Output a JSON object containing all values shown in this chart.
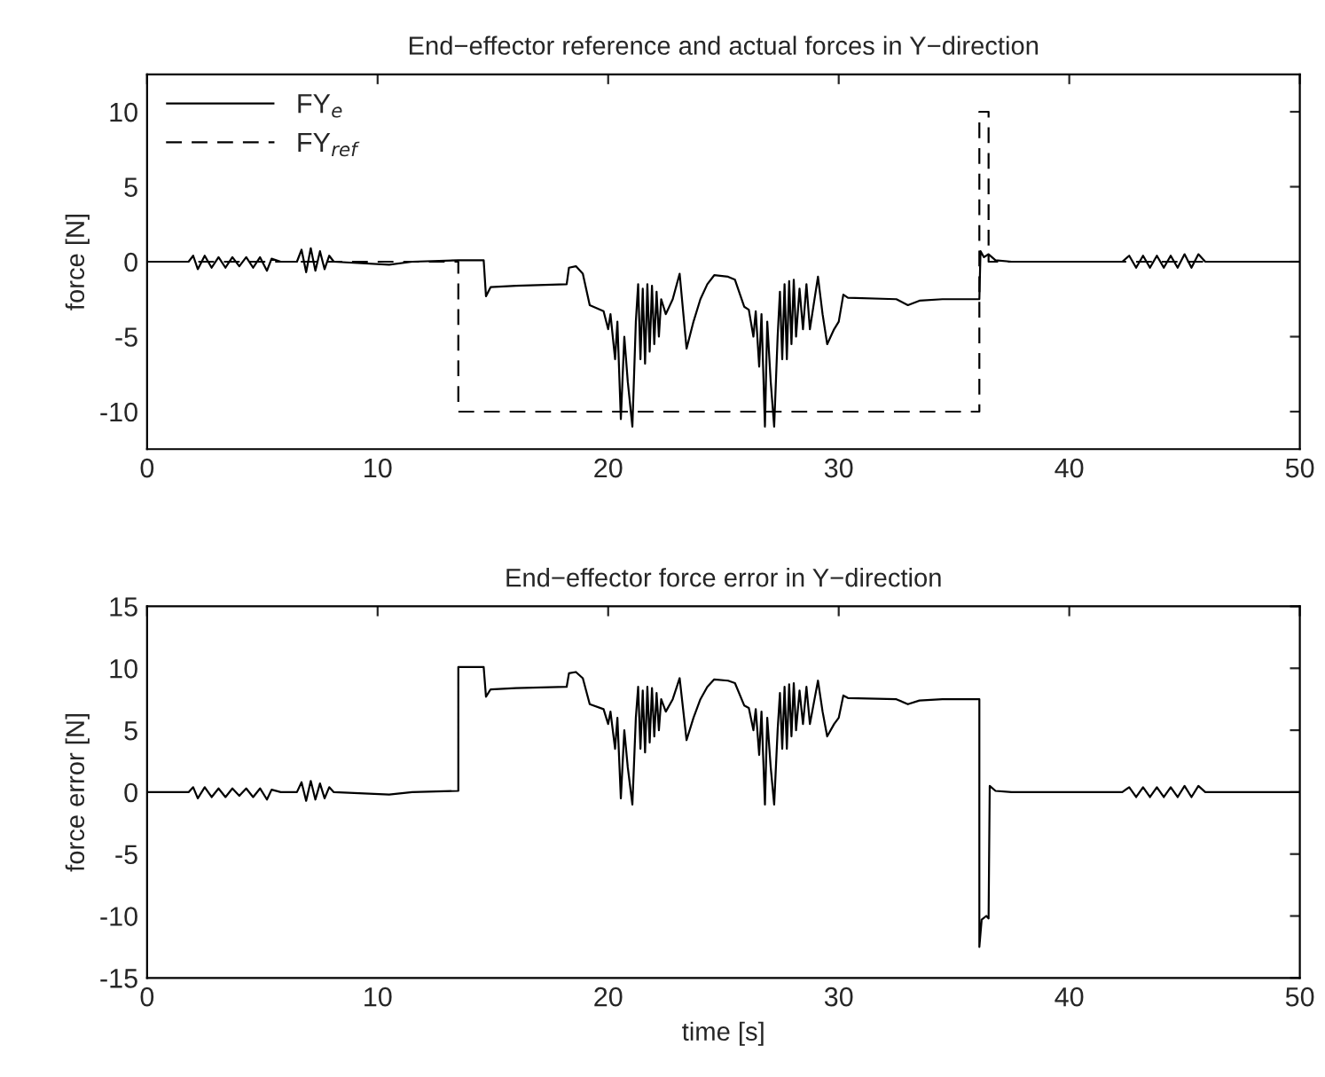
{
  "chart_data": [
    {
      "type": "line",
      "title": "End−effector reference and actual forces in Y−direction",
      "ylabel": "force [N]",
      "xlim": [
        0,
        50
      ],
      "ylim": [
        -12.5,
        12.5
      ],
      "xticks": [
        0,
        10,
        20,
        30,
        40,
        50
      ],
      "yticks": [
        -10,
        -5,
        0,
        5,
        10
      ],
      "legend": "top left",
      "series": [
        {
          "name": "FY$_{e}$",
          "color": "#000000",
          "line_style": "solid",
          "x": [
            0,
            1.8,
            2.0,
            2.2,
            2.5,
            2.8,
            3.1,
            3.4,
            3.7,
            4.0,
            4.3,
            4.6,
            4.9,
            5.2,
            5.4,
            5.8,
            6.5,
            6.7,
            6.9,
            7.1,
            7.3,
            7.5,
            7.7,
            7.9,
            8.1,
            10.5,
            11.5,
            13.5,
            14.6,
            14.7,
            14.9,
            16,
            18.2,
            18.3,
            18.6,
            18.9,
            19.2,
            19.8,
            20.0,
            20.1,
            20.3,
            20.4,
            20.55,
            20.7,
            20.85,
            21.05,
            21.2,
            21.3,
            21.4,
            21.5,
            21.6,
            21.7,
            21.8,
            21.9,
            22.0,
            22.1,
            22.2,
            22.3,
            22.5,
            22.8,
            23.1,
            23.4,
            23.7,
            24.0,
            24.3,
            24.6,
            25.2,
            25.5,
            25.9,
            26.1,
            26.3,
            26.4,
            26.55,
            26.65,
            26.8,
            26.9,
            27.05,
            27.2,
            27.35,
            27.45,
            27.55,
            27.65,
            27.75,
            27.85,
            27.95,
            28.05,
            28.15,
            28.3,
            28.45,
            28.6,
            28.75,
            28.9,
            29.1,
            29.3,
            29.5,
            29.8,
            30.0,
            30.2,
            30.4,
            32.5,
            33.0,
            33.5,
            34.5,
            36.1,
            36.15,
            36.3,
            36.5,
            36.8,
            37.5,
            42.3,
            42.6,
            42.9,
            43.2,
            43.5,
            43.8,
            44.1,
            44.4,
            44.7,
            45.0,
            45.3,
            45.6,
            45.9,
            50
          ],
          "values": [
            0,
            0,
            0.4,
            -0.5,
            0.4,
            -0.4,
            0.3,
            -0.4,
            0.3,
            -0.3,
            0.3,
            -0.4,
            0.3,
            -0.6,
            0.2,
            0,
            0,
            0.8,
            -0.7,
            0.9,
            -0.6,
            0.7,
            -0.5,
            0.4,
            0,
            -0.2,
            0,
            0.1,
            0.1,
            -2.3,
            -1.7,
            -1.6,
            -1.5,
            -0.4,
            -0.3,
            -0.8,
            -2.9,
            -3.3,
            -4.5,
            -3.5,
            -6.5,
            -4,
            -10.5,
            -5,
            -8,
            -11,
            -4,
            -1.5,
            -6.5,
            -1.8,
            -6.8,
            -1.5,
            -6,
            -1.6,
            -5.5,
            -2,
            -5,
            -2.5,
            -3.5,
            -2.5,
            -0.8,
            -5.8,
            -4,
            -2.5,
            -1.5,
            -0.9,
            -1.0,
            -1.2,
            -3.0,
            -3.2,
            -5,
            -3.3,
            -7,
            -3.5,
            -11,
            -4,
            -8,
            -11,
            -5,
            -2,
            -6.5,
            -1.5,
            -6.5,
            -1.3,
            -5.5,
            -1.2,
            -5,
            -1.8,
            -4.5,
            -1.5,
            -4.5,
            -3,
            -1,
            -3.5,
            -5.5,
            -4.5,
            -4,
            -2.2,
            -2.4,
            -2.5,
            -2.9,
            -2.6,
            -2.5,
            -2.5,
            0.7,
            0.3,
            0.5,
            0.1,
            0,
            0,
            0.4,
            -0.4,
            0.4,
            -0.4,
            0.4,
            -0.4,
            0.4,
            -0.4,
            0.5,
            -0.4,
            0.5,
            0,
            0
          ]
        },
        {
          "name": "FY$_{ref}$",
          "color": "#000000",
          "line_style": "dashed",
          "x": [
            0,
            13.5,
            13.5,
            36.1,
            36.1,
            36.5,
            36.5,
            50
          ],
          "values": [
            0,
            0,
            -10,
            -10,
            10,
            10,
            0,
            0
          ]
        }
      ]
    },
    {
      "type": "line",
      "title": "End−effector force error in Y−direction",
      "xlabel": "time [s]",
      "ylabel": "force error [N]",
      "xlim": [
        0,
        50
      ],
      "ylim": [
        -15,
        15
      ],
      "xticks": [
        0,
        10,
        20,
        30,
        40,
        50
      ],
      "yticks": [
        -15,
        -10,
        -5,
        0,
        5,
        10,
        15
      ],
      "series": [
        {
          "color": "#000000",
          "line_style": "solid",
          "x": [
            0,
            1.8,
            2.0,
            2.2,
            2.5,
            2.8,
            3.1,
            3.4,
            3.7,
            4.0,
            4.3,
            4.6,
            4.9,
            5.2,
            5.4,
            5.8,
            6.5,
            6.7,
            6.9,
            7.1,
            7.3,
            7.5,
            7.7,
            7.9,
            8.1,
            10.5,
            11.5,
            13.5,
            13.5,
            14.6,
            14.7,
            14.9,
            16,
            18.2,
            18.3,
            18.6,
            18.9,
            19.2,
            19.8,
            20.0,
            20.1,
            20.3,
            20.4,
            20.55,
            20.7,
            20.85,
            21.05,
            21.2,
            21.3,
            21.4,
            21.5,
            21.6,
            21.7,
            21.8,
            21.9,
            22.0,
            22.1,
            22.2,
            22.3,
            22.5,
            22.8,
            23.1,
            23.4,
            23.7,
            24.0,
            24.3,
            24.6,
            25.2,
            25.5,
            25.9,
            26.1,
            26.3,
            26.4,
            26.55,
            26.65,
            26.8,
            26.9,
            27.05,
            27.2,
            27.35,
            27.45,
            27.55,
            27.65,
            27.75,
            27.85,
            27.95,
            28.05,
            28.15,
            28.3,
            28.45,
            28.6,
            28.75,
            28.9,
            29.1,
            29.3,
            29.5,
            29.8,
            30.0,
            30.2,
            30.4,
            32.5,
            33.0,
            33.5,
            34.5,
            36.1,
            36.1,
            36.2,
            36.4,
            36.5,
            36.55,
            36.8,
            37.5,
            42.3,
            42.6,
            42.9,
            43.2,
            43.5,
            43.8,
            44.1,
            44.4,
            44.7,
            45.0,
            45.3,
            45.6,
            45.9,
            50
          ],
          "values": [
            0,
            0,
            0.4,
            -0.5,
            0.4,
            -0.4,
            0.3,
            -0.4,
            0.3,
            -0.3,
            0.3,
            -0.4,
            0.3,
            -0.6,
            0.2,
            0,
            0,
            0.8,
            -0.7,
            0.9,
            -0.6,
            0.7,
            -0.5,
            0.4,
            0,
            -0.2,
            0,
            0.1,
            10.1,
            10.1,
            7.7,
            8.3,
            8.4,
            8.5,
            9.6,
            9.7,
            9.2,
            7.1,
            6.7,
            5.5,
            6.5,
            3.5,
            6,
            -0.5,
            5,
            2,
            -1,
            6,
            8.5,
            3.5,
            8.2,
            3.2,
            8.5,
            4,
            8.4,
            4.5,
            8,
            5,
            7.5,
            6.5,
            7.5,
            9.2,
            4.2,
            6,
            7.5,
            8.5,
            9.1,
            9.0,
            8.8,
            7.0,
            6.8,
            5,
            6.7,
            3,
            6.5,
            -1,
            6,
            2,
            -1,
            5,
            8,
            3.5,
            8.5,
            3.5,
            8.7,
            4.5,
            8.8,
            5,
            8.2,
            5.5,
            8.5,
            5.5,
            7,
            9,
            6.5,
            4.5,
            5.5,
            6,
            7.8,
            7.6,
            7.5,
            7.1,
            7.4,
            7.5,
            7.5,
            -12.5,
            -10.3,
            -10.0,
            -10.2,
            0.5,
            0.1,
            0,
            0,
            0.4,
            -0.4,
            0.4,
            -0.4,
            0.4,
            -0.4,
            0.4,
            -0.4,
            0.5,
            -0.4,
            0.5,
            0,
            0
          ]
        }
      ]
    }
  ]
}
